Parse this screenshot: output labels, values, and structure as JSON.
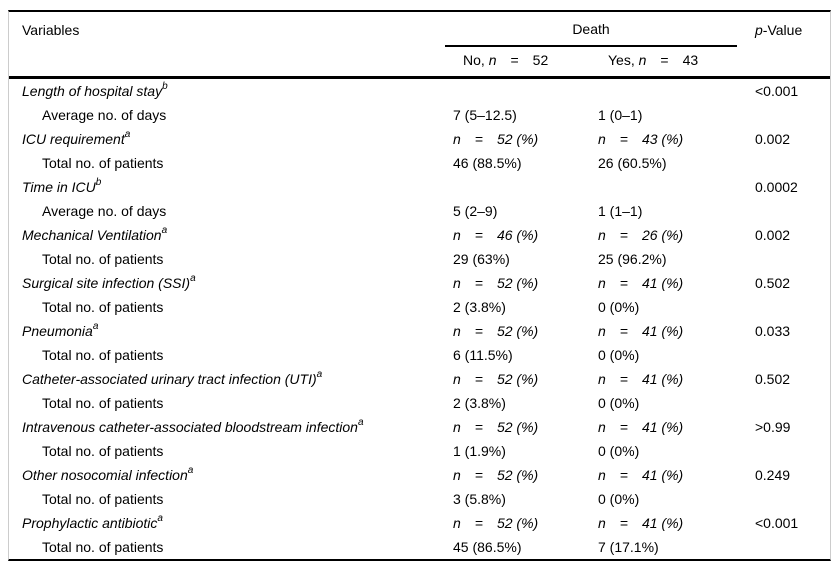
{
  "table": {
    "header": {
      "variables": "Variables",
      "death": "Death",
      "p_italic": "p",
      "p_rest": "-Value",
      "no": {
        "prefix": "No, ",
        "n": "n",
        "rest": " = 52"
      },
      "yes": {
        "prefix": "Yes, ",
        "n": "n",
        "rest": " = 43"
      }
    },
    "groups": [
      {
        "variable": "Length of hospital stay",
        "sup": "b",
        "no_header": "",
        "yes_header": "",
        "p": "<0.001",
        "sub_label": "Average no. of days",
        "no_value": "7 (5–12.5)",
        "yes_value": "1 (0–1)"
      },
      {
        "variable": "ICU requirement",
        "sup": "a",
        "no_header": "n = 52 (%)",
        "yes_header": "n = 43 (%)",
        "p": "0.002",
        "sub_label": "Total no. of patients",
        "no_value": "46 (88.5%)",
        "yes_value": "26 (60.5%)"
      },
      {
        "variable": "Time in ICU",
        "sup": "b",
        "no_header": "",
        "yes_header": "",
        "p": "0.0002",
        "sub_label": "Average no. of days",
        "no_value": "5 (2–9)",
        "yes_value": "1 (1–1)"
      },
      {
        "variable": "Mechanical Ventilation",
        "sup": "a",
        "no_header": "n = 46 (%)",
        "yes_header": "n = 26 (%)",
        "p": "0.002",
        "sub_label": "Total no. of patients",
        "no_value": "29 (63%)",
        "yes_value": "25 (96.2%)"
      },
      {
        "variable": "Surgical site infection (SSI)",
        "sup": "a",
        "no_header": "n = 52 (%)",
        "yes_header": "n = 41 (%)",
        "p": "0.502",
        "sub_label": "Total no. of patients",
        "no_value": "2 (3.8%)",
        "yes_value": "0 (0%)"
      },
      {
        "variable": "Pneumonia",
        "sup": "a",
        "no_header": "n = 52 (%)",
        "yes_header": "n = 41 (%)",
        "p": "0.033",
        "sub_label": "Total no. of patients",
        "no_value": "6 (11.5%)",
        "yes_value": "0 (0%)"
      },
      {
        "variable": "Catheter-associated urinary tract infection (UTI)",
        "sup": "a",
        "no_header": "n = 52 (%)",
        "yes_header": "n = 41 (%)",
        "p": "0.502",
        "sub_label": "Total no. of patients",
        "no_value": "2 (3.8%)",
        "yes_value": "0 (0%)"
      },
      {
        "variable": "Intravenous catheter-associated bloodstream infection",
        "sup": "a",
        "no_header": "n = 52 (%)",
        "yes_header": "n = 41 (%)",
        "p": ">0.99",
        "sub_label": "Total no. of patients",
        "no_value": "1 (1.9%)",
        "yes_value": "0 (0%)"
      },
      {
        "variable": "Other nosocomial infection",
        "sup": "a",
        "no_header": "n = 52 (%)",
        "yes_header": "n = 41 (%)",
        "p": "0.249",
        "sub_label": "Total no. of patients",
        "no_value": "3 (5.8%)",
        "yes_value": "0 (0%)"
      },
      {
        "variable": "Prophylactic antibiotic",
        "sup": "a",
        "no_header": "n = 52 (%)",
        "yes_header": "n = 41 (%)",
        "p": "<0.001",
        "sub_label": "Total no. of patients",
        "no_value": "45 (86.5%)",
        "yes_value": "7 (17.1%)"
      }
    ]
  }
}
